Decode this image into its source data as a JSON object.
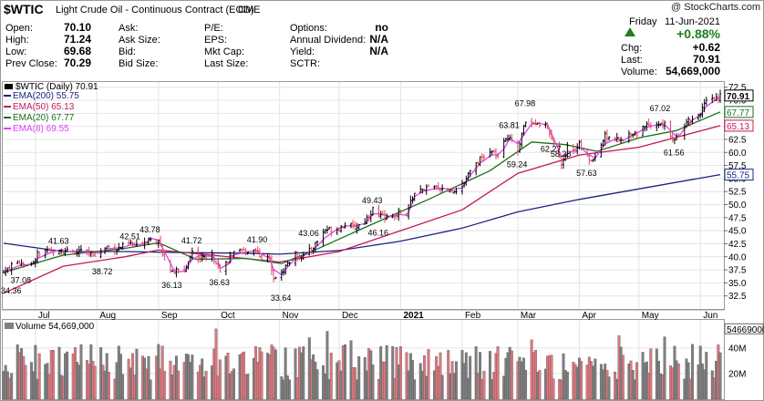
{
  "header": {
    "symbol": "$WTIC",
    "name": "Light Crude Oil - Continuous Contract (EOD)",
    "exchange": "CME",
    "copyright": "@ StockCharts.com",
    "day": "Friday",
    "date": "11-Jun-2021",
    "change_pct": "+0.88%",
    "up_arrow": "up-triangle",
    "fields": [
      {
        "label": "Open:",
        "value": "70.10"
      },
      {
        "label": "High:",
        "value": "71.24"
      },
      {
        "label": "Low:",
        "value": "69.68"
      },
      {
        "label": "Prev Close:",
        "value": "70.29"
      }
    ],
    "col2": [
      {
        "label": "Ask:",
        "value": ""
      },
      {
        "label": "Ask Size:",
        "value": ""
      },
      {
        "label": "Bid:",
        "value": ""
      },
      {
        "label": "Bid Size:",
        "value": ""
      }
    ],
    "col3": [
      {
        "label": "P/E:",
        "value": ""
      },
      {
        "label": "EPS:",
        "value": ""
      },
      {
        "label": "Mkt Cap:",
        "value": ""
      },
      {
        "label": "Last Size:",
        "value": ""
      }
    ],
    "col4": [
      {
        "label": "Options:",
        "value": "no"
      },
      {
        "label": "Annual Dividend:",
        "value": "N/A"
      },
      {
        "label": "Yield:",
        "value": "N/A"
      },
      {
        "label": "SCTR:",
        "value": ""
      }
    ],
    "right": [
      {
        "label": "Chg:",
        "value": "+0.62"
      },
      {
        "label": "Last:",
        "value": "70.91"
      },
      {
        "label": "Volume:",
        "value": "54,669,000"
      }
    ]
  },
  "legend": {
    "title": "$WTIC (Daily) 70.91",
    "entries": [
      {
        "label": "EMA(200) 55.75",
        "color": "#1a237e"
      },
      {
        "label": "EMA(50) 65.13",
        "color": "#c2185b"
      },
      {
        "label": "EMA(20) 67.77",
        "color": "#1b6e1b"
      },
      {
        "label": "EMA(8) 69.55",
        "color": "#e040fb"
      }
    ]
  },
  "volume_legend": "Volume 54,669,000",
  "colors": {
    "up": "#000000",
    "down": "#e0485a",
    "vol_up": "#808080",
    "vol_down": "#e07880",
    "grid": "#e4e4e4"
  },
  "chart_data": {
    "type": "line",
    "price_ylim": [
      30,
      73.5
    ],
    "price_ticks": [
      "72.5",
      "70.0",
      "67.5",
      "65.0",
      "62.5",
      "60.0",
      "57.5",
      "55.0",
      "52.5",
      "50.0",
      "47.5",
      "45.0",
      "42.5",
      "40.0",
      "37.5",
      "35.0",
      "32.5"
    ],
    "months": [
      "Jul",
      "Aug",
      "Sep",
      "Oct",
      "Nov",
      "Dec",
      "2021",
      "Feb",
      "Mar",
      "Apr",
      "May",
      "Jun"
    ],
    "price_path": [
      [
        "2020-06-15",
        37.0
      ],
      [
        "2020-06-22",
        39.0
      ],
      [
        "2020-06-30",
        38.5
      ],
      [
        "2020-07-02",
        40.5
      ],
      [
        "2020-07-08",
        40.8
      ],
      [
        "2020-07-13",
        41.63
      ],
      [
        "2020-07-20",
        40.5
      ],
      [
        "2020-07-24",
        41.2
      ],
      [
        "2020-07-29",
        40.5
      ],
      [
        "2020-08-03",
        40.8
      ],
      [
        "2020-08-06",
        42.0
      ],
      [
        "2020-08-11",
        41.5
      ],
      [
        "2020-08-14",
        42.0
      ],
      [
        "2020-08-18",
        42.51
      ],
      [
        "2020-08-21",
        42.0
      ],
      [
        "2020-08-26",
        43.2
      ],
      [
        "2020-08-28",
        43.78
      ],
      [
        "2020-09-01",
        42.8
      ],
      [
        "2020-09-04",
        39.8
      ],
      [
        "2020-09-08",
        36.8
      ],
      [
        "2020-09-10",
        37.3
      ],
      [
        "2020-09-14",
        37.2
      ],
      [
        "2020-09-18",
        41.0
      ],
      [
        "2020-09-22",
        39.8
      ],
      [
        "2020-09-28",
        40.2
      ],
      [
        "2020-10-01",
        38.8
      ],
      [
        "2020-10-02",
        37.1
      ],
      [
        "2020-10-07",
        39.9
      ],
      [
        "2020-10-09",
        40.6
      ],
      [
        "2020-10-14",
        41.0
      ],
      [
        "2020-10-20",
        41.4
      ],
      [
        "2020-10-23",
        39.9
      ],
      [
        "2020-10-27",
        39.6
      ],
      [
        "2020-10-29",
        36.2
      ],
      [
        "2020-11-02",
        36.8
      ],
      [
        "2020-11-05",
        38.8
      ],
      [
        "2020-11-09",
        40.3
      ],
      [
        "2020-11-13",
        40.1
      ],
      [
        "2020-11-17",
        41.4
      ],
      [
        "2020-11-24",
        45.2
      ],
      [
        "2020-11-30",
        45.3
      ],
      [
        "2020-12-04",
        46.3
      ],
      [
        "2020-12-09",
        45.6
      ],
      [
        "2020-12-14",
        46.9
      ],
      [
        "2020-12-18",
        49.1
      ],
      [
        "2020-12-21",
        47.7
      ],
      [
        "2020-12-28",
        47.6
      ],
      [
        "2020-12-31",
        48.5
      ],
      [
        "2021-01-04",
        47.6
      ],
      [
        "2021-01-06",
        50.6
      ],
      [
        "2021-01-08",
        52.2
      ],
      [
        "2021-01-13",
        53.0
      ],
      [
        "2021-01-20",
        53.3
      ],
      [
        "2021-01-27",
        52.6
      ],
      [
        "2021-02-01",
        53.6
      ],
      [
        "2021-02-05",
        56.9
      ],
      [
        "2021-02-10",
        58.7
      ],
      [
        "2021-02-16",
        60.1
      ],
      [
        "2021-02-19",
        59.2
      ],
      [
        "2021-02-22",
        61.7
      ],
      [
        "2021-02-25",
        63.3
      ],
      [
        "2021-03-01",
        60.6
      ],
      [
        "2021-03-05",
        66.1
      ],
      [
        "2021-03-08",
        65.1
      ],
      [
        "2021-03-11",
        66.0
      ],
      [
        "2021-03-16",
        64.8
      ],
      [
        "2021-03-19",
        61.4
      ],
      [
        "2021-03-23",
        57.8
      ],
      [
        "2021-03-26",
        60.9
      ],
      [
        "2021-03-30",
        60.5
      ],
      [
        "2021-04-01",
        61.5
      ],
      [
        "2021-04-06",
        58.3
      ],
      [
        "2021-04-09",
        59.3
      ],
      [
        "2021-04-14",
        63.2
      ],
      [
        "2021-04-20",
        62.4
      ],
      [
        "2021-04-23",
        62.1
      ],
      [
        "2021-04-27",
        63.9
      ],
      [
        "2021-04-30",
        63.6
      ],
      [
        "2021-05-05",
        65.6
      ],
      [
        "2021-05-11",
        65.3
      ],
      [
        "2021-05-14",
        65.4
      ],
      [
        "2021-05-19",
        62.0
      ],
      [
        "2021-05-21",
        63.6
      ],
      [
        "2021-05-25",
        66.1
      ],
      [
        "2021-05-28",
        66.3
      ],
      [
        "2021-06-01",
        67.7
      ],
      [
        "2021-06-04",
        69.6
      ],
      [
        "2021-06-08",
        70.1
      ],
      [
        "2021-06-11",
        70.91
      ]
    ],
    "ema": {
      "ema200": [
        [
          "2020-06-15",
          42.6
        ],
        [
          "2020-07-15",
          41.0
        ],
        [
          "2020-08-15",
          41.0
        ],
        [
          "2020-09-15",
          40.8
        ],
        [
          "2020-10-15",
          40.7
        ],
        [
          "2020-11-01",
          40.5
        ],
        [
          "2020-12-01",
          41.2
        ],
        [
          "2021-01-01",
          43.0
        ],
        [
          "2021-02-01",
          45.5
        ],
        [
          "2021-03-01",
          48.6
        ],
        [
          "2021-04-01",
          51.0
        ],
        [
          "2021-05-01",
          53.0
        ],
        [
          "2021-06-11",
          55.75
        ]
      ],
      "ema50": [
        [
          "2020-06-15",
          33.0
        ],
        [
          "2020-07-15",
          38.2
        ],
        [
          "2020-08-15",
          40.0
        ],
        [
          "2020-09-01",
          41.3
        ],
        [
          "2020-10-01",
          40.2
        ],
        [
          "2020-11-01",
          39.0
        ],
        [
          "2020-12-01",
          41.0
        ],
        [
          "2021-01-01",
          45.0
        ],
        [
          "2021-02-01",
          49.0
        ],
        [
          "2021-03-01",
          56.0
        ],
        [
          "2021-04-01",
          59.5
        ],
        [
          "2021-05-01",
          61.0
        ],
        [
          "2021-06-11",
          65.13
        ]
      ],
      "ema20": [
        [
          "2020-06-15",
          37.0
        ],
        [
          "2020-07-15",
          40.3
        ],
        [
          "2020-08-15",
          41.6
        ],
        [
          "2020-09-01",
          42.7
        ],
        [
          "2020-09-20",
          39.5
        ],
        [
          "2020-10-15",
          39.7
        ],
        [
          "2020-11-02",
          38.7
        ],
        [
          "2020-11-20",
          41.5
        ],
        [
          "2020-12-15",
          45.8
        ],
        [
          "2021-01-15",
          51.0
        ],
        [
          "2021-02-15",
          56.5
        ],
        [
          "2021-03-08",
          62.0
        ],
        [
          "2021-03-25",
          61.5
        ],
        [
          "2021-04-10",
          60.2
        ],
        [
          "2021-05-01",
          62.8
        ],
        [
          "2021-05-20",
          64.2
        ],
        [
          "2021-06-11",
          67.77
        ]
      ]
    },
    "annotations": [
      {
        "date": "2020-06-17",
        "value": "34.36"
      },
      {
        "date": "2020-06-24",
        "value": "37.08"
      },
      {
        "date": "2020-07-13",
        "value": "41.63"
      },
      {
        "date": "2020-08-04",
        "value": "38.72"
      },
      {
        "date": "2020-08-18",
        "value": "42.51"
      },
      {
        "date": "2020-08-28",
        "value": "43.78"
      },
      {
        "date": "2020-09-08",
        "value": "36.13"
      },
      {
        "date": "2020-09-18",
        "value": "41.72"
      },
      {
        "date": "2020-10-02",
        "value": "36.63"
      },
      {
        "date": "2020-10-21",
        "value": "41.90"
      },
      {
        "date": "2020-11-02",
        "value": "33.64"
      },
      {
        "date": "2020-11-16",
        "value": "43.06"
      },
      {
        "date": "2020-12-18",
        "value": "49.43"
      },
      {
        "date": "2020-12-21",
        "value": "46.16"
      },
      {
        "date": "2021-02-25",
        "value": "63.81"
      },
      {
        "date": "2021-03-05",
        "value": "67.98"
      },
      {
        "date": "2021-03-01",
        "value": "59.24"
      },
      {
        "date": "2021-03-18",
        "value": "62.27"
      },
      {
        "date": "2021-03-23",
        "value": "58.28"
      },
      {
        "date": "2021-04-05",
        "value": "57.63"
      },
      {
        "date": "2021-05-12",
        "value": "67.02"
      },
      {
        "date": "2021-05-19",
        "value": "61.56"
      }
    ],
    "last_labels": [
      {
        "value": 70.91,
        "text": "70.91",
        "color": "#000000"
      },
      {
        "value": 67.77,
        "text": "67.77",
        "color": "#1b6e1b"
      },
      {
        "value": 65.13,
        "text": "65.13",
        "color": "#c2185b"
      },
      {
        "value": 55.75,
        "text": "55.75",
        "color": "#1a237e"
      }
    ],
    "volume_ylim": [
      0,
      62
    ],
    "volume_ticks": [
      "40M",
      "20M"
    ],
    "volume_last": "54669000"
  }
}
